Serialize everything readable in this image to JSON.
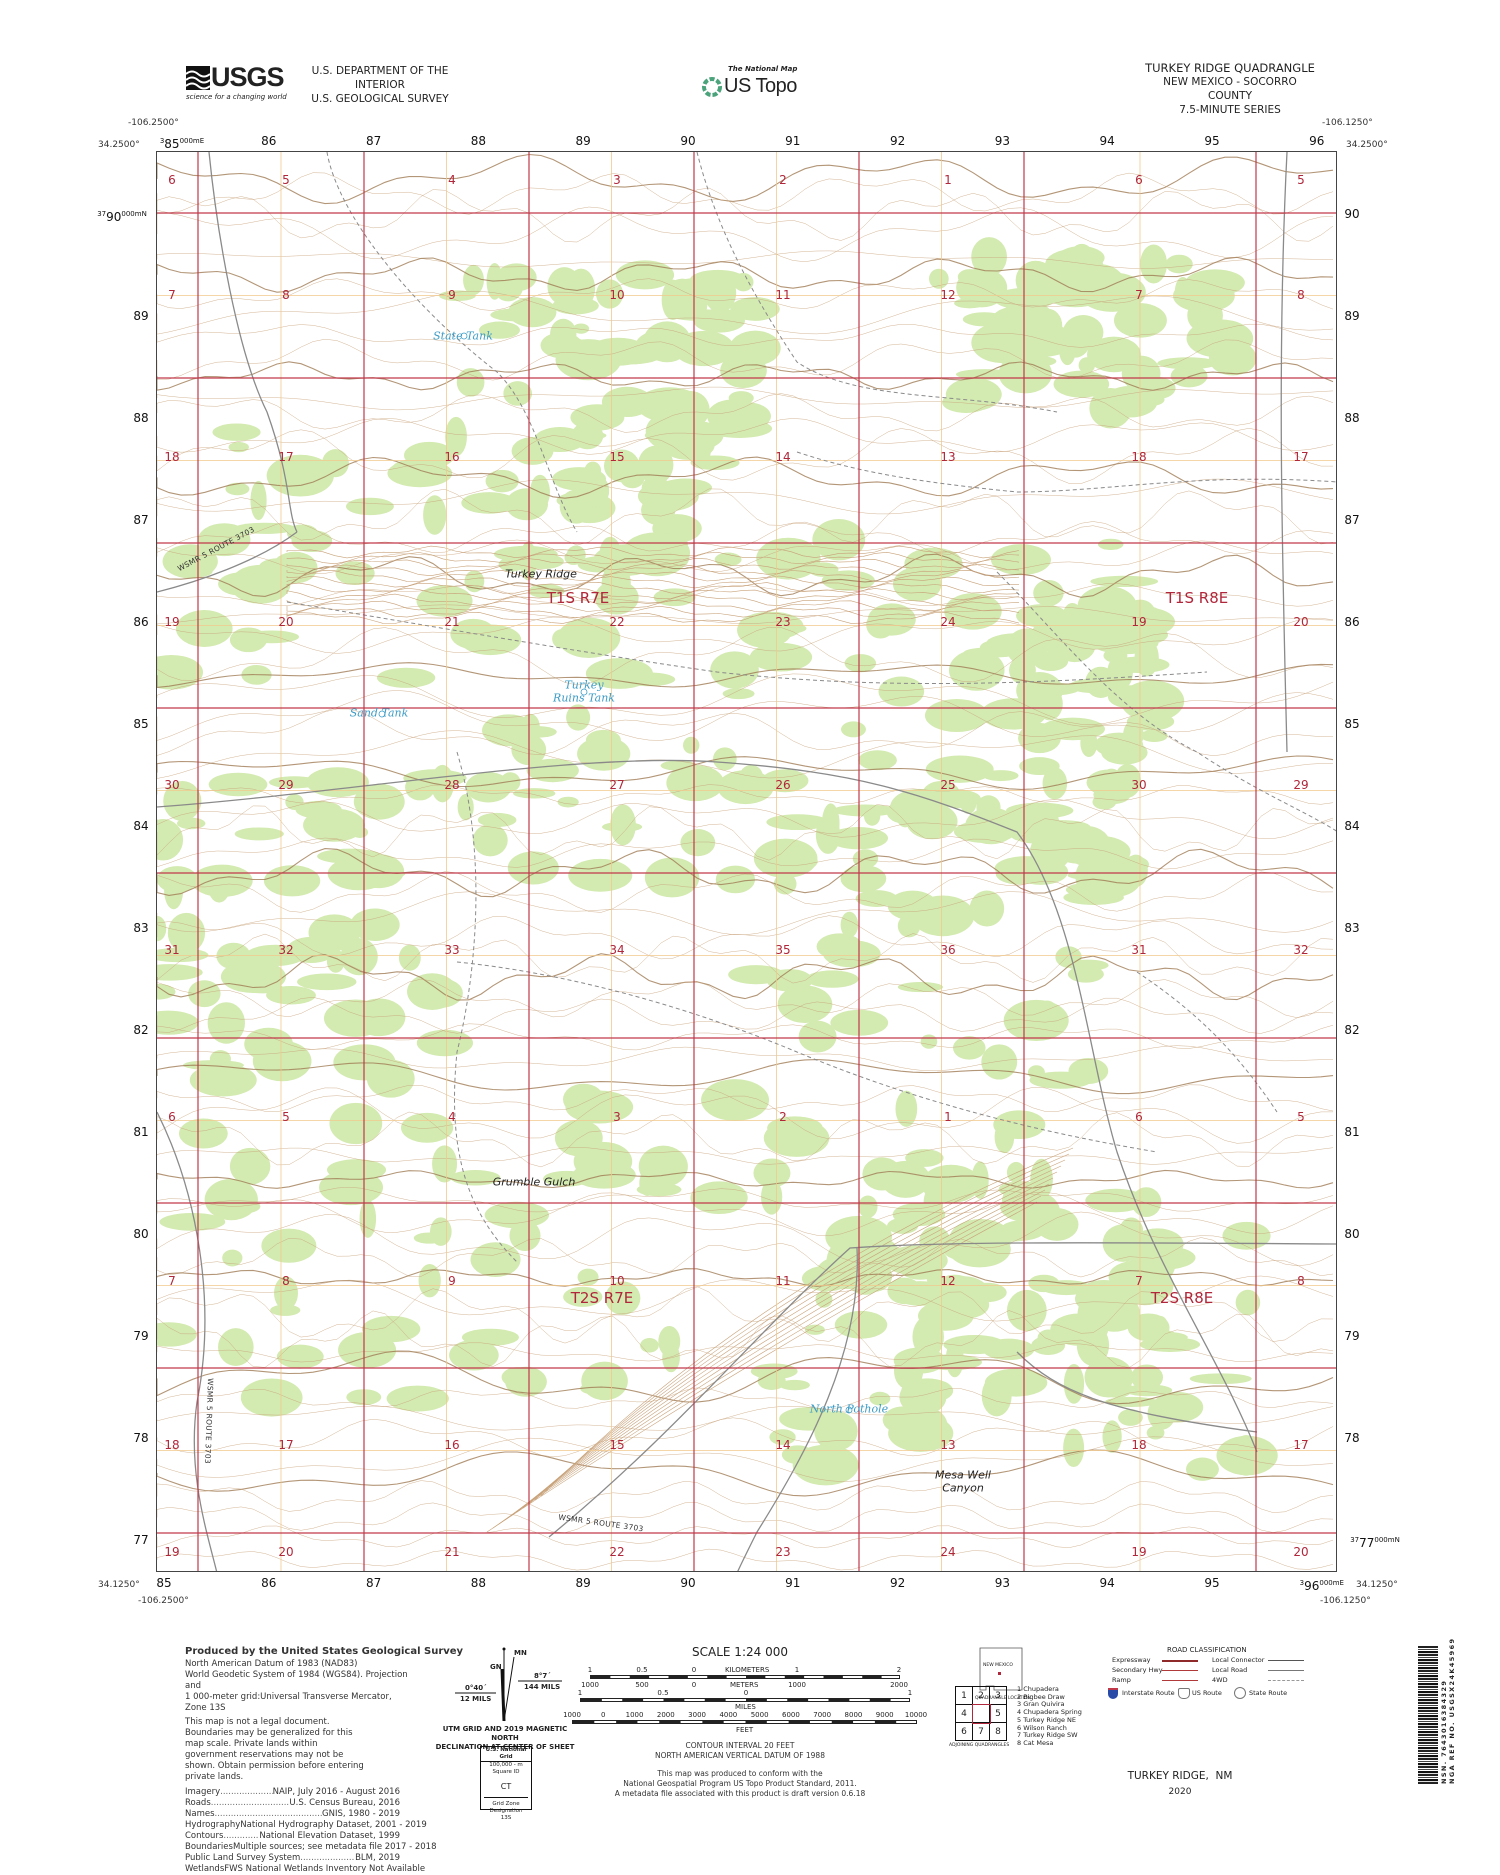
{
  "header": {
    "usgs_logo": "USGS",
    "usgs_tagline": "science for a changing world",
    "agency_line1": "U.S. DEPARTMENT OF THE INTERIOR",
    "agency_line2": "U.S. GEOLOGICAL SURVEY",
    "national_map": "The National Map",
    "us_topo": "US Topo",
    "quad_title": "TURKEY RIDGE QUADRANGLE",
    "quad_location": "NEW MEXICO - SOCORRO COUNTY",
    "quad_series": "7.5-MINUTE SERIES"
  },
  "corners": {
    "nw_lon": "-106.2500°",
    "nw_lat": "34.2500°",
    "ne_lon": "-106.1250°",
    "ne_lat": "34.2500°",
    "sw_lat": "34.1250°",
    "sw_lon": "-106.2500°",
    "se_lat": "34.1250°",
    "se_lon": "-106.1250°"
  },
  "utm": {
    "top_first": {
      "pre": "3",
      "num": "85",
      "post": "000mE"
    },
    "top": [
      "86",
      "87",
      "88",
      "89",
      "90",
      "91",
      "92",
      "93",
      "94",
      "95",
      "96"
    ],
    "bottom": [
      "85",
      "86",
      "87",
      "88",
      "89",
      "90",
      "91",
      "92",
      "93",
      "94",
      "95"
    ],
    "bottom_last": {
      "pre": "3",
      "num": "96",
      "post": "000mE"
    },
    "left_first": {
      "pre": "37",
      "num": "90",
      "post": "000mN"
    },
    "left": [
      "89",
      "88",
      "87",
      "86",
      "85",
      "84",
      "83",
      "82",
      "81",
      "80",
      "79",
      "78",
      "77"
    ],
    "right": [
      "90",
      "89",
      "88",
      "87",
      "86",
      "85",
      "84",
      "83",
      "82",
      "81",
      "80",
      "79",
      "78"
    ],
    "right_last": {
      "pre": "37",
      "num": "77",
      "post": "000mN"
    }
  },
  "map": {
    "colors": {
      "section_line": "#c0394b",
      "vegetation": "#d3eab0",
      "contour": "#c8a27a",
      "index_contour": "#a07c55",
      "road": "#8a8a8a",
      "water": "#3d9cc6"
    },
    "section_rows": [
      [
        "6",
        "5",
        "4",
        "3",
        "2",
        "1",
        "6",
        "5"
      ],
      [
        "7",
        "8",
        "9",
        "10",
        "11",
        "12",
        "7",
        "8"
      ],
      [
        "18",
        "17",
        "16",
        "15",
        "14",
        "13",
        "18",
        "17"
      ],
      [
        "19",
        "20",
        "21",
        "22",
        "23",
        "24",
        "19",
        "20"
      ],
      [
        "30",
        "29",
        "28",
        "27",
        "26",
        "25",
        "30",
        "29"
      ],
      [
        "31",
        "32",
        "33",
        "34",
        "35",
        "36",
        "31",
        "32"
      ],
      [
        "6",
        "5",
        "4",
        "3",
        "2",
        "1",
        "6",
        "5"
      ],
      [
        "7",
        "8",
        "9",
        "10",
        "11",
        "12",
        "7",
        "8"
      ],
      [
        "18",
        "17",
        "16",
        "15",
        "14",
        "13",
        "18",
        "17"
      ],
      [
        "19",
        "20",
        "21",
        "22",
        "23",
        "24",
        "19",
        "20"
      ]
    ],
    "townships": [
      "T1S R7E",
      "T1S R8E",
      "T2S R7E",
      "T2S R8E"
    ],
    "places": {
      "state_tank": "State Tank",
      "turkey_ridge": "Turkey Ridge",
      "turkey_ruins_tank_1": "Turkey",
      "turkey_ruins_tank_2": "Ruins Tank",
      "sand_tank": "Sand Tank",
      "grumble_gulch": "Grumble Gulch",
      "north_pothole": "North Pothole",
      "mesa_well_canyon_1": "Mesa Well",
      "mesa_well_canyon_2": "Canyon"
    },
    "route_label": "WSMR 5 ROUTE 3703"
  },
  "footer": {
    "producer": "Produced by the United States Geological Survey",
    "datum_lines": [
      "North American Datum of 1983 (NAD83)",
      "World Geodetic System of 1984 (WGS84). Projection and",
      "1 000-meter grid:Universal Transverse Mercator, Zone 13S"
    ],
    "disclaimer": "This map is not a legal document. Boundaries may be generalized for this map scale. Private lands within government reservations may not be shown. Obtain permission before entering private lands.",
    "credits": [
      {
        "label": "Imagery",
        "value": "NAIP, July 2016 - August 2016"
      },
      {
        "label": "Roads",
        "value": "U.S. Census Bureau, 2016"
      },
      {
        "label": "Names",
        "value": "GNIS, 1980 - 2019"
      },
      {
        "label": "Hydrography",
        "value": "National Hydrography Dataset, 2001 - 2019"
      },
      {
        "label": "Contours",
        "value": "National Elevation Dataset, 1999"
      },
      {
        "label": "Boundaries",
        "value": "Multiple sources; see metadata file 2017 - 2018"
      },
      {
        "label": "Public Land Survey System",
        "value": "BLM, 2019"
      },
      {
        "label": "Wetlands",
        "value": "FWS National Wetlands Inventory Not Available"
      }
    ],
    "declination": {
      "mn": "MN",
      "gn": "GN",
      "east_angle": "8°7´",
      "east_mils": "144 MILS",
      "west_angle": "0°40´",
      "west_mils": "12 MILS",
      "caption_1": "UTM GRID AND 2019 MAGNETIC NORTH",
      "caption_2": "DECLINATION AT CENTER OF SHEET"
    },
    "usng": {
      "title": "U.S. National Grid",
      "subtitle": "100,000 - m Square ID",
      "square_id": "CT",
      "gzd_label": "Grid Zone Designation",
      "gzd": "13S"
    },
    "scale": {
      "title": "SCALE 1:24 000",
      "km_ticks": [
        "1",
        "0.5",
        "0",
        "1",
        "2"
      ],
      "km_unit": "KILOMETERS",
      "m_ticks": [
        "1000",
        "500",
        "0",
        "1000",
        "2000"
      ],
      "m_unit": "METERS",
      "mi_ticks": [
        "1",
        "0.5",
        "0",
        "1"
      ],
      "mi_unit": "MILES",
      "ft_ticks": [
        "1000",
        "0",
        "1000",
        "2000",
        "3000",
        "4000",
        "5000",
        "6000",
        "7000",
        "8000",
        "9000",
        "10000"
      ],
      "ft_unit": "FEET"
    },
    "contour_interval": "CONTOUR INTERVAL 20 FEET",
    "vertical_datum": "NORTH AMERICAN VERTICAL DATUM OF 1988",
    "standard_lines": [
      "This map was produced to conform with the",
      "National Geospatial Program US Topo Product Standard, 2011.",
      "A metadata file associated with this product is draft version 0.6.18"
    ],
    "state_name": "NEW MEXICO",
    "quad_location_label": "QUADRANGLE LOCATION",
    "adjoining": {
      "grid": [
        "1",
        "2",
        "3",
        "4",
        "",
        "5",
        "6",
        "7",
        "8"
      ],
      "list": [
        "1 Chupadera",
        "2 Bigbee Draw",
        "3 Gran Quivira",
        "4 Chupadera Spring",
        "5 Turkey Ridge NE",
        "6 Wilson Ranch",
        "7 Turkey Ridge SW",
        "8 Cat Mesa"
      ],
      "label": "ADJOINING QUADRANGLES"
    },
    "road_legend": {
      "title": "ROAD CLASSIFICATION",
      "expressway": "Expressway",
      "secondary": "Secondary Hwy",
      "ramp": "Ramp",
      "local_connector": "Local Connector",
      "local_road": "Local Road",
      "fourwd": "4WD",
      "interstate": "Interstate Route",
      "us_route": "US Route",
      "state_route": "State Route"
    },
    "sheet_name": "TURKEY RIDGE,  NM",
    "year": "2020",
    "nsn": "NSN. 7643016384329",
    "nga_ref": "NGA REF NO. USGSX24K45969"
  }
}
